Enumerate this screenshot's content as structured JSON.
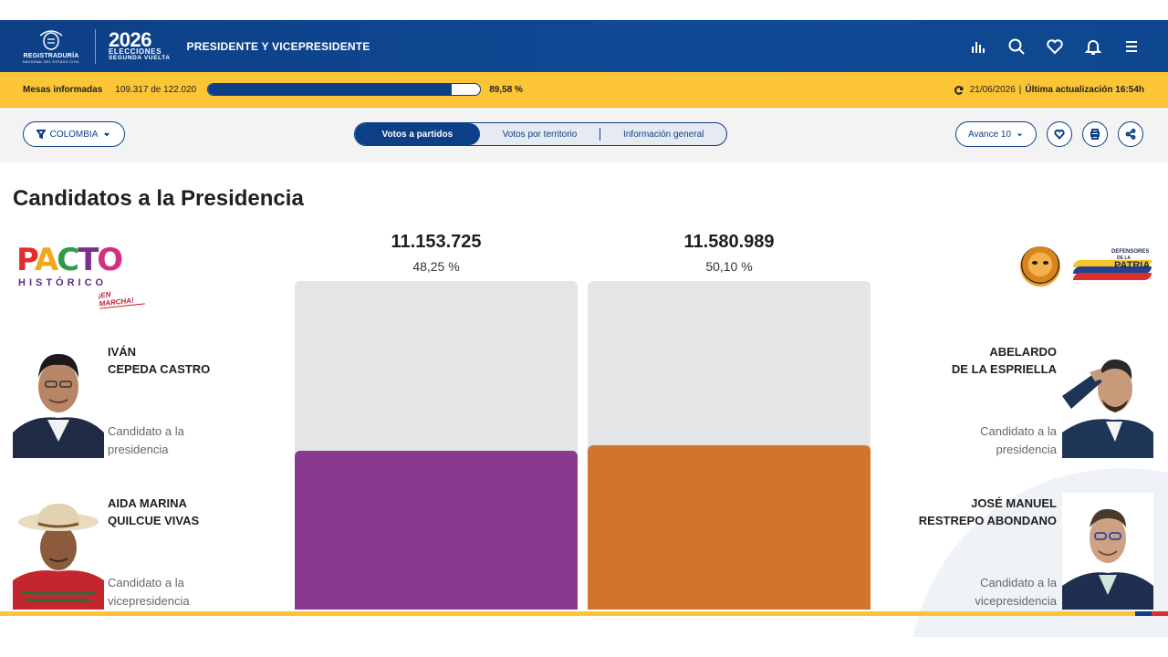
{
  "header": {
    "logo_name": "REGISTRADURÍA",
    "logo_sub": "NACIONAL DEL ESTADO CIVIL",
    "elections_year": "2026",
    "elections_label": "ELECCIONES",
    "elections_round": "SEGUNDA VUELTA",
    "title": "PRESIDENTE Y VICEPRESIDENTE",
    "icons": [
      "bar-chart-icon",
      "search-icon",
      "heart-icon",
      "bell-icon",
      "menu-icon"
    ]
  },
  "progress": {
    "label": "Mesas informadas",
    "count": "109.317 de 122.020",
    "fraction": 0.8958,
    "percent": "89,58 %",
    "date": "21/06/2026",
    "separator": "|",
    "update_label": "Última actualización 16:54h"
  },
  "toolbar": {
    "filter_label": "COLOMBIA",
    "tabs": [
      {
        "label": "Votos a partidos",
        "active": true
      },
      {
        "label": "Votos por territorio",
        "active": false
      },
      {
        "label": "Información general",
        "active": false
      }
    ],
    "avance_label": "Avance 10"
  },
  "main": {
    "title": "Candidatos a la Presidencia"
  },
  "candidates": [
    {
      "party_logo_text": "PACTO",
      "party_logo_sub": "HISTÓRICO",
      "party_logo_tag": "¡EN MARCHA!",
      "president_line1": "IVÁN",
      "president_line2": "CEPEDA CASTRO",
      "president_role_line1": "Candidato a la",
      "president_role_line2": "presidencia",
      "vice_line1": "AIDA MARINA",
      "vice_line2": "QUILCUE VIVAS",
      "vice_role_line1": "Candidato a la",
      "vice_role_line2": "vicepresidencia",
      "votes": "11.153.725",
      "percent": "48,25 %",
      "share": 48.25,
      "color": "#8a3a8e"
    },
    {
      "party_logo_text1": "DEFENSORES",
      "party_logo_text2": "DE LA",
      "party_logo_text3": "PATRIA",
      "president_line1": "ABELARDO",
      "president_line2": "DE LA ESPRIELLA",
      "president_role_line1": "Candidato a la",
      "president_role_line2": "presidencia",
      "vice_line1": "JOSÉ MANUEL",
      "vice_line2": "RESTREPO ABONDANO",
      "vice_role_line1": "Candidato a la",
      "vice_role_line2": "vicepresidencia",
      "votes": "11.580.989",
      "percent": "50,10 %",
      "share": 50.1,
      "color": "#d0752b"
    }
  ],
  "colors": {
    "primary": "#0d3f86",
    "accent": "#fcc536"
  }
}
